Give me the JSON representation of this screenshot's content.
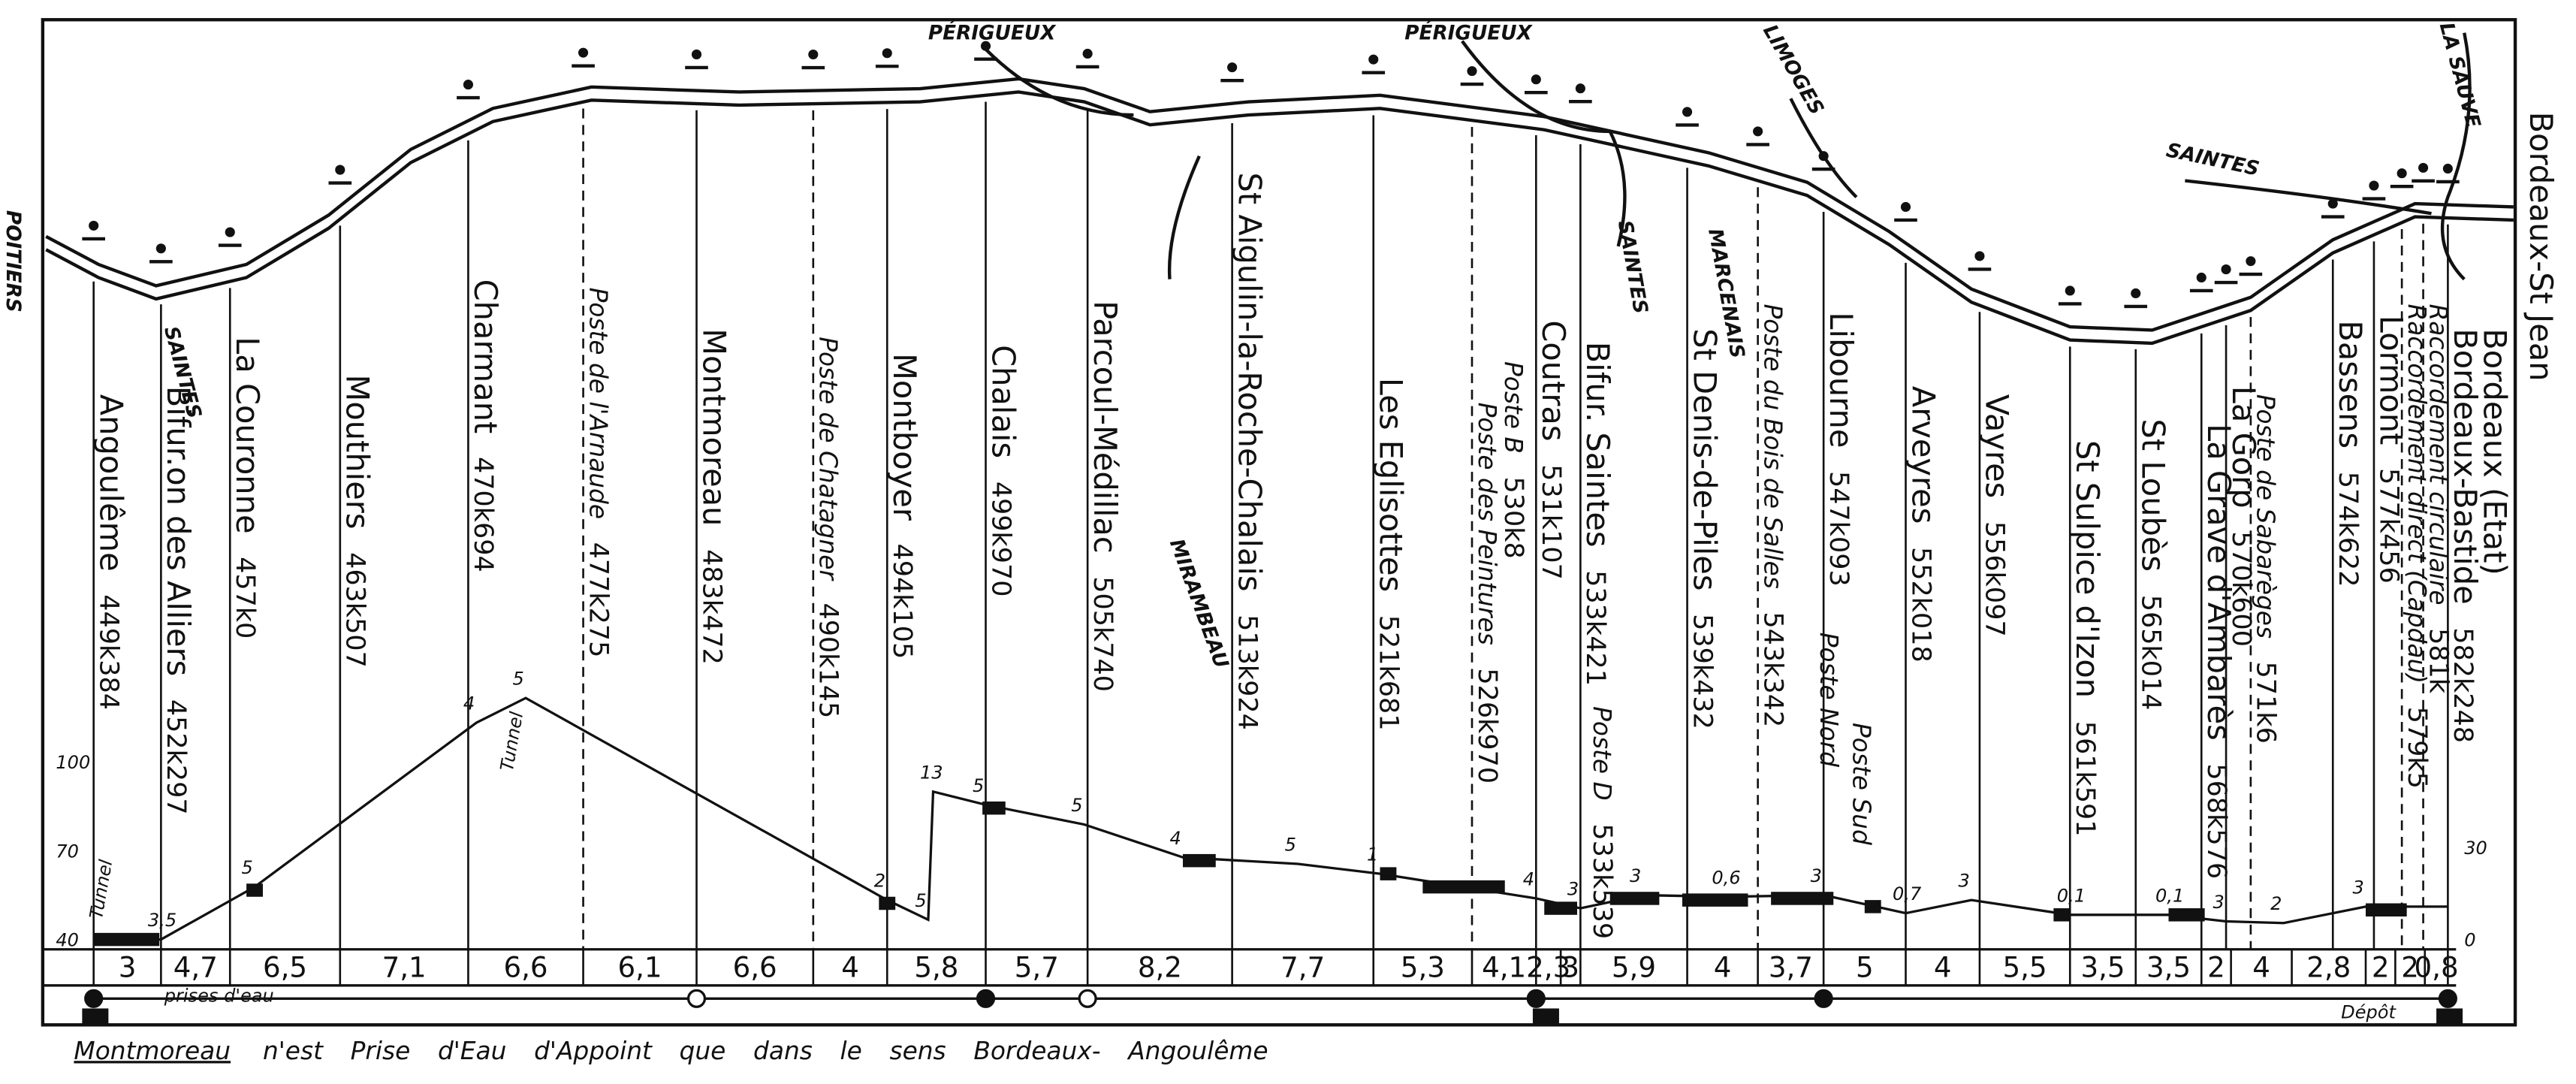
{
  "stations": [
    {
      "name": "Angoulême",
      "km": "449k384"
    },
    {
      "name": "Bifur.on des Alliers",
      "km": "452k297"
    },
    {
      "name": "La Couronne",
      "km": "457k0"
    },
    {
      "name": "Mouthiers",
      "km": "463k507"
    },
    {
      "name": "Charmant",
      "km": "470k694"
    },
    {
      "name": "Poste de l'Arnaude",
      "km": "477k275"
    },
    {
      "name": "Montmoreau",
      "km": "483k472"
    },
    {
      "name": "Poste de Chatagner",
      "km": "490k145"
    },
    {
      "name": "Montboyer",
      "km": "494k105"
    },
    {
      "name": "Chalais",
      "km": "499k970"
    },
    {
      "name": "Parcoul-Médillac",
      "km": "505k740"
    },
    {
      "name": "St Aigulin-la-Roche-Chalais",
      "km": "513k924"
    },
    {
      "name": "Les Eglisottes",
      "km": "521k681"
    },
    {
      "name": "Poste des Peintures",
      "km": "526k970"
    },
    {
      "name": "Poste B",
      "km": "530k8"
    },
    {
      "name": "Coutras",
      "km": "531k107"
    },
    {
      "name": "Bifur. Saintes",
      "km": "533k421"
    },
    {
      "name": "Poste D",
      "km": "533k539"
    },
    {
      "name": "St Denis-de-Piles",
      "km": "539k432"
    },
    {
      "name": "Poste du Bois de Salles",
      "km": "543k342"
    },
    {
      "name": "Libourne",
      "km": "547k093"
    },
    {
      "name": "Poste Nord"
    },
    {
      "name": "Poste Sud"
    },
    {
      "name": "Arveyres",
      "km": "552k018"
    },
    {
      "name": "Vayres",
      "km": "556k097"
    },
    {
      "name": "St Sulpice d'Izon",
      "km": "561k591"
    },
    {
      "name": "St Loubès",
      "km": "565k014"
    },
    {
      "name": "La Grave d'Ambarès",
      "km": "568k576"
    },
    {
      "name": "La Gorp",
      "km": "570k600"
    },
    {
      "name": "Poste de Sabarèges",
      "km": "571k6"
    },
    {
      "name": "Bassens",
      "km": "574k622"
    },
    {
      "name": "Lormont",
      "km": "577k456"
    },
    {
      "name": "Raccordement direct (Capdau)",
      "km": "579k5"
    },
    {
      "name": "Raccordement circulaire",
      "km": "581k"
    },
    {
      "name": "Bordeaux-Bastide",
      "km": "582k248"
    }
  ],
  "terminus": {
    "main": "Bordeaux-St Jean",
    "other": "Bordeaux (Etat)"
  },
  "sections": [
    "3",
    "4,7",
    "6,5",
    "7,1",
    "6,6",
    "6,1",
    "6,6",
    "4",
    "5,8",
    "5,7",
    "8,2",
    "7,7",
    "5,3",
    "4,1",
    "2,3",
    "3",
    "5,9",
    "4",
    "3,7",
    "5",
    "4",
    "5,5",
    "3,5",
    "3,5",
    "2",
    "4",
    "2,8",
    "2",
    "2",
    "0,8"
  ],
  "directions": [
    "POITIERS",
    "SAINTES",
    "PÉRIGUEUX",
    "MIRAMBEAU",
    "PÉRIGUEUX",
    "SAINTES",
    "MARCENAIS",
    "LIMOGES",
    "SAINTES",
    "LA SAUVE"
  ],
  "profile": {
    "tunnels": [
      "Tunnel",
      "Tunnel"
    ],
    "altitudes_left": [
      "100",
      "70",
      "40"
    ],
    "altitudes_right": [
      "30",
      "0"
    ],
    "gradients": [
      "3,5",
      "5",
      "4",
      "5",
      "2",
      "5",
      "13",
      "5",
      "5",
      "4",
      "5",
      "1",
      "4",
      "3",
      "3",
      "0,6",
      "3",
      "0,7",
      "3",
      "0,1",
      "0,1",
      "3",
      "2",
      "3"
    ]
  },
  "legend": {
    "water": "prises d'eau",
    "depot": "Dépôt"
  },
  "footnote": {
    "station": "Montmoreau",
    "text": "n'est Prise d'Eau d'Appoint que dans le sens Bordeaux- Angoulême"
  }
}
